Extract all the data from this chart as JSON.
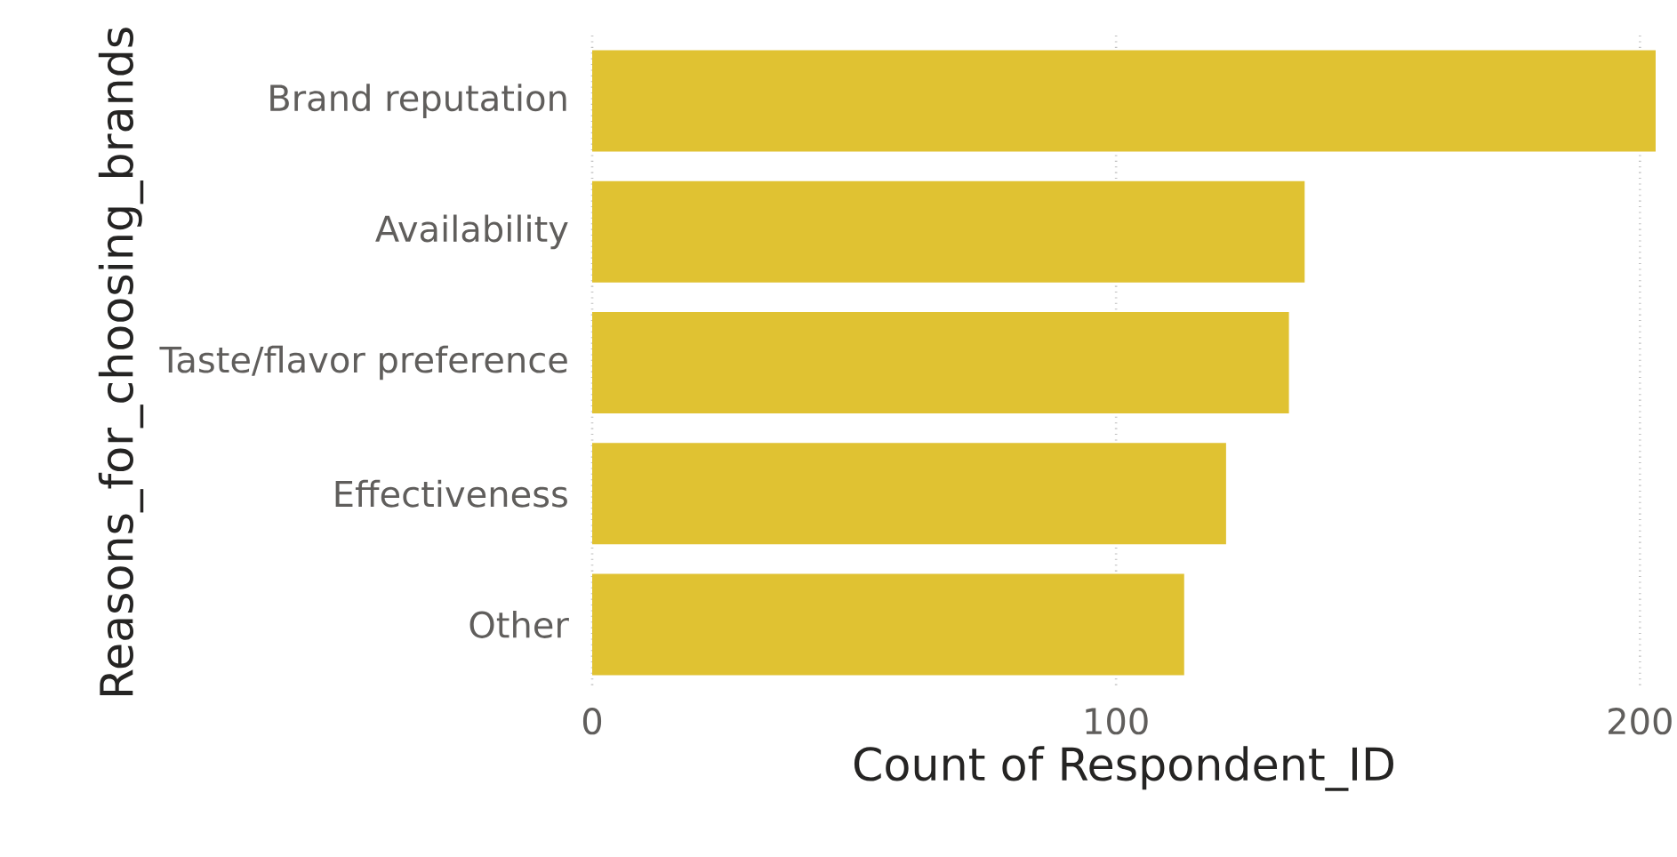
{
  "chart_data": {
    "type": "bar",
    "orientation": "horizontal",
    "categories": [
      "Brand reputation",
      "Availability",
      "Taste/flavor preference",
      "Effectiveness",
      "Other"
    ],
    "values": [
      203,
      136,
      133,
      121,
      113
    ],
    "color": "#e0c232",
    "xlim": [
      0,
      203
    ],
    "xticks": [
      0,
      100,
      200
    ],
    "grid": "x",
    "xlabel": "Count of Respondent_ID",
    "ylabel": "Reasons_for_choosing_brands"
  }
}
